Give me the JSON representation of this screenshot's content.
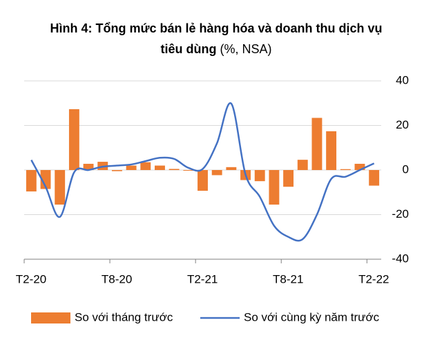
{
  "chart_data": {
    "type": "bar_line",
    "title": [
      "Hình 4: Tổng mức bán lẻ hàng hóa và doanh thu dịch vụ",
      "tiêu dùng"
    ],
    "unit_note": "(%, NSA)",
    "categories": [
      "T2-20",
      null,
      null,
      null,
      null,
      null,
      "T8-20",
      null,
      null,
      null,
      null,
      null,
      "T2-21",
      null,
      null,
      null,
      null,
      null,
      "T8-21",
      null,
      null,
      null,
      null,
      null,
      "T2-22"
    ],
    "series": [
      {
        "name": "So với tháng trước",
        "type": "bar",
        "color": "#ed7d31",
        "values": [
          -9.6,
          -8.5,
          -15.5,
          27.3,
          2.8,
          3.7,
          -0.5,
          2,
          3.5,
          2,
          0.5,
          -0.3,
          -9.3,
          -2.3,
          1.3,
          -4.5,
          -5,
          -15.5,
          -7.5,
          4.6,
          23.4,
          17.4,
          0.4,
          2.8,
          -7
        ]
      },
      {
        "name": "So với cùng kỳ năm trước",
        "type": "line",
        "color": "#4472c4",
        "values": [
          4.5,
          -7.5,
          -21,
          -1,
          0,
          1.5,
          2,
          2.5,
          4,
          5.5,
          5,
          1,
          0.5,
          12,
          29.8,
          -2,
          -12,
          -25,
          -30,
          -31,
          -20,
          -4,
          -3,
          0,
          3
        ]
      }
    ],
    "ylim": [
      -40,
      40
    ],
    "yticks": [
      -40,
      -20,
      0,
      20,
      40
    ],
    "grid": true,
    "legend": "bottom"
  }
}
